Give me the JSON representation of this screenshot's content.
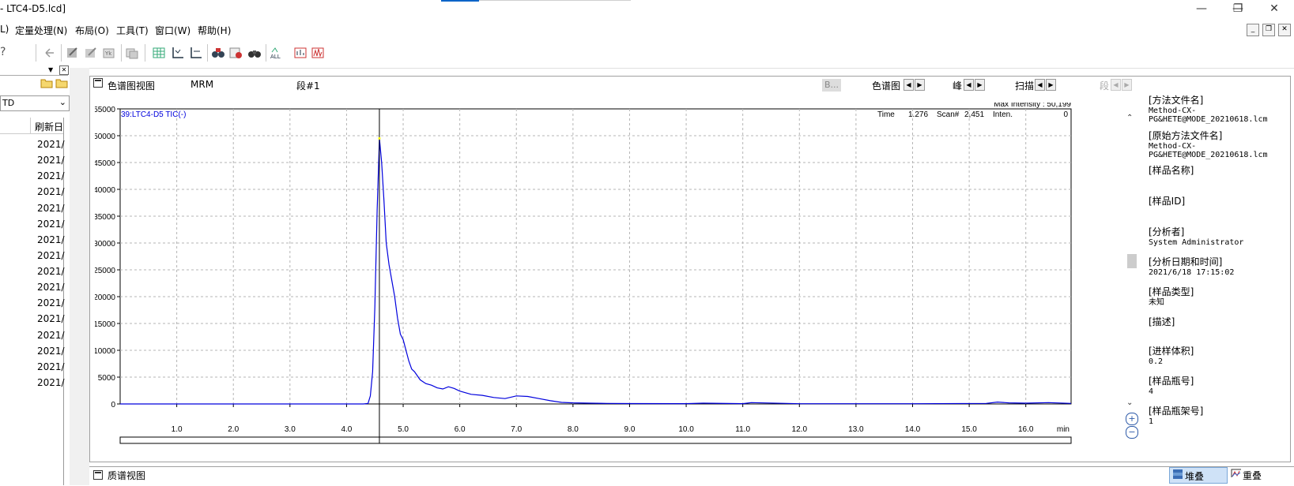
{
  "window": {
    "title": "- LTC4-D5.lcd]",
    "minimize_icon": "minimize-icon",
    "maximize_icon": "restore-icon",
    "close_icon": "close-icon"
  },
  "menubar": {
    "items": [
      "L)",
      "定量处理(N)",
      "布局(O)",
      "工具(T)",
      "窗口(W)",
      "帮助(H)"
    ]
  },
  "left_panel": {
    "dropdown_value": "TD",
    "column_header": "刷新日",
    "rows": [
      "2021/",
      "2021/",
      "2021/",
      "2021/",
      "2021/",
      "2021/",
      "2021/",
      "2021/",
      "2021/",
      "2021/",
      "2021/",
      "2021/",
      "2021/",
      "2021/",
      "2021/",
      "2021/"
    ]
  },
  "chromatogram": {
    "panel_title": "色谱图视图",
    "mode": "MRM",
    "segment": "段#1",
    "b_button": "B...",
    "nav_chrom": "色谱图",
    "nav_peak": "峰",
    "nav_scan": "扫描",
    "nav_segment": "段",
    "max_intensity_label": "Max Intensity : 50,199",
    "trace_label": "39:LTC4-D5 TIC(-)",
    "time_label": "Time",
    "time_value": "1.276",
    "scan_label": "Scan#",
    "scan_value": "2,451",
    "inten_label": "Inten.",
    "inten_value": "0",
    "x_unit": "min"
  },
  "chart_data": {
    "type": "line",
    "xlim": [
      0.0,
      16.8
    ],
    "ylim": [
      0,
      55000
    ],
    "x_ticks": [
      1.0,
      2.0,
      3.0,
      4.0,
      5.0,
      6.0,
      7.0,
      8.0,
      9.0,
      10.0,
      11.0,
      12.0,
      13.0,
      14.0,
      15.0,
      16.0
    ],
    "y_ticks": [
      0,
      5000,
      10000,
      15000,
      20000,
      25000,
      30000,
      35000,
      40000,
      45000,
      50000,
      55000
    ],
    "grid": true,
    "cursor_x": 4.58,
    "series": [
      {
        "name": "39:LTC4-D5 TIC(-)",
        "color": "#0000dd",
        "x": [
          0.0,
          4.3,
          4.38,
          4.42,
          4.46,
          4.5,
          4.54,
          4.58,
          4.62,
          4.66,
          4.7,
          4.75,
          4.8,
          4.85,
          4.9,
          4.95,
          5.0,
          5.05,
          5.1,
          5.15,
          5.2,
          5.3,
          5.4,
          5.5,
          5.6,
          5.7,
          5.8,
          5.9,
          6.0,
          6.2,
          6.4,
          6.6,
          6.8,
          7.0,
          7.2,
          7.4,
          7.6,
          7.8,
          8.0,
          8.3,
          8.6,
          9.0,
          10.0,
          10.3,
          11.0,
          11.15,
          12.0,
          14.0,
          15.3,
          15.5,
          15.7,
          16.0,
          16.4,
          16.8
        ],
        "y": [
          0,
          0,
          100,
          1500,
          6000,
          18000,
          36000,
          49500,
          45000,
          38000,
          30000,
          26000,
          23000,
          20000,
          16000,
          13000,
          12000,
          10000,
          8000,
          6500,
          6000,
          4500,
          3800,
          3500,
          3000,
          2800,
          3200,
          2900,
          2400,
          1800,
          1600,
          1200,
          1000,
          1500,
          1400,
          1000,
          600,
          300,
          200,
          150,
          100,
          80,
          60,
          150,
          60,
          250,
          50,
          40,
          100,
          350,
          200,
          150,
          250,
          100
        ]
      }
    ]
  },
  "info_panel": {
    "method_file_label": "[方法文件名]",
    "method_file_value": "Method-CX-\nPG&HETE@MODE_20210618.lcm",
    "orig_method_label": "[原始方法文件名]",
    "orig_method_value": "Method-CX-\nPG&HETE@MODE_20210618.lcm",
    "sample_name_label": "[样品名称]",
    "sample_id_label": "[样品ID]",
    "analyst_label": "[分析者]",
    "analyst_value": "System Administrator",
    "date_label": "[分析日期和时间]",
    "date_value": "2021/6/18 17:15:02",
    "sample_type_label": "[样品类型]",
    "sample_type_value": "未知",
    "desc_label": "[描述]",
    "inj_vol_label": "[进样体积]",
    "inj_vol_value": "0.2",
    "vial_label": "[样品瓶号]",
    "vial_value": "4",
    "rack_label": "[样品瓶架号]",
    "rack_value": "1"
  },
  "ms_view": {
    "title": "质谱视图",
    "stack_label": "堆叠",
    "overlay_label": "重叠"
  }
}
